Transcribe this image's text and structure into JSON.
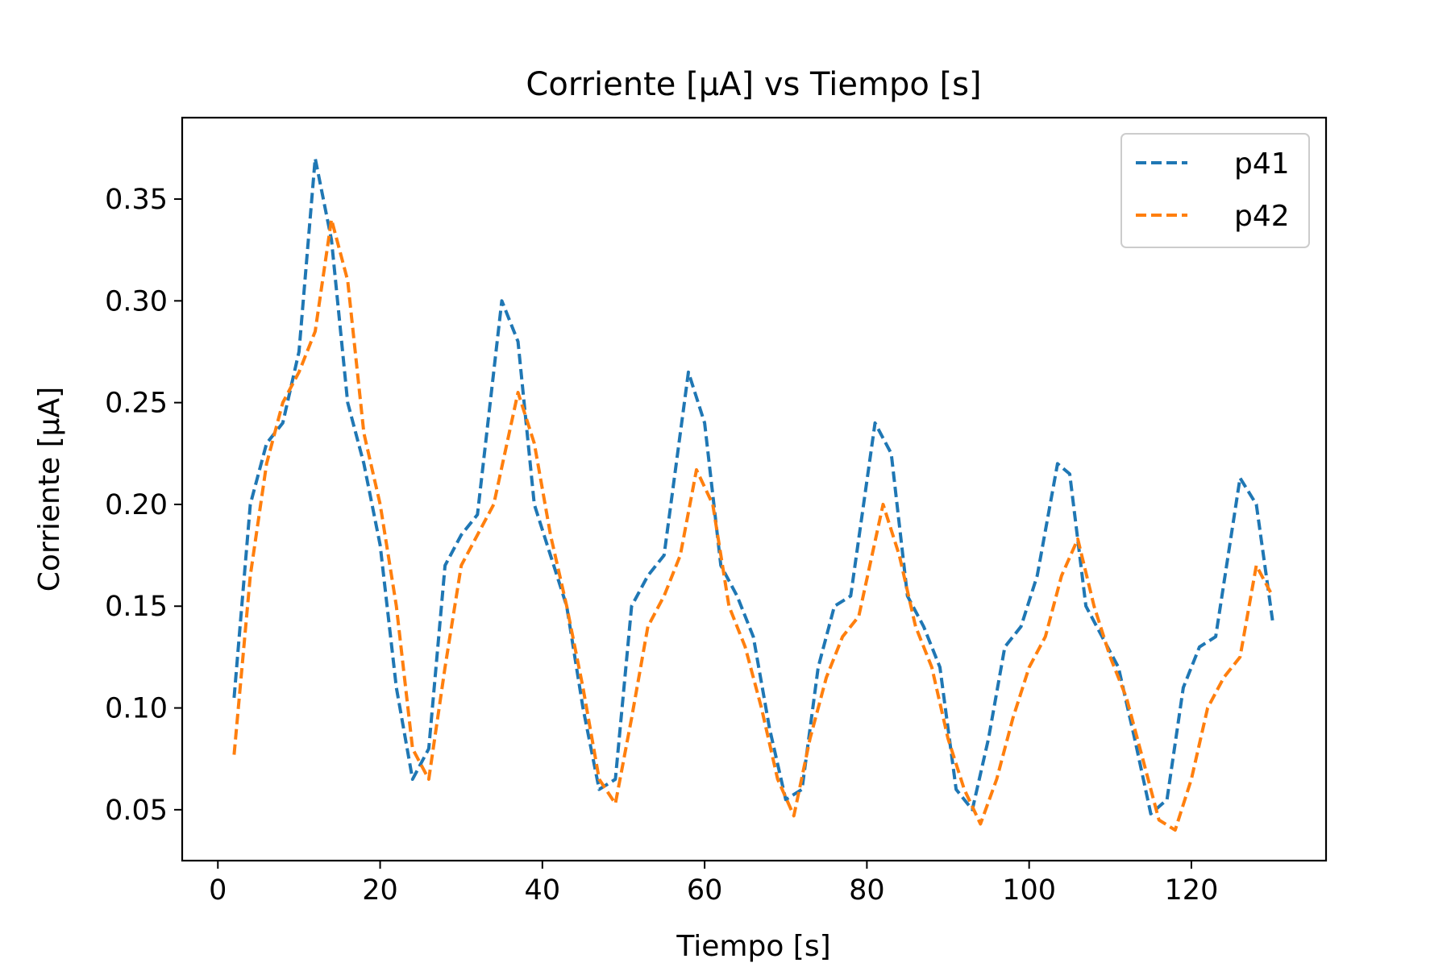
{
  "chart_data": {
    "type": "line",
    "title": "Corriente [μA] vs Tiempo [s]",
    "xlabel": "Tiempo [s]",
    "ylabel": "Corriente [μA]",
    "xlim": [
      -4.4,
      136.6
    ],
    "ylim": [
      0.025,
      0.39
    ],
    "xticks": [
      0,
      20,
      40,
      60,
      80,
      100,
      120
    ],
    "xtick_labels": [
      "0",
      "20",
      "40",
      "60",
      "80",
      "100",
      "120"
    ],
    "yticks": [
      0.05,
      0.1,
      0.15,
      0.2,
      0.25,
      0.3,
      0.35
    ],
    "ytick_labels": [
      "0.05",
      "0.10",
      "0.15",
      "0.20",
      "0.25",
      "0.30",
      "0.35"
    ],
    "grid": false,
    "legend_position": "top-right",
    "series": [
      {
        "name": "p41",
        "color": "#1f77b4",
        "linestyle": "dashed",
        "x": [
          2,
          4,
          6,
          8,
          10,
          12,
          14,
          16,
          18,
          20,
          22,
          24,
          26,
          28,
          30,
          32,
          35,
          37,
          39,
          41,
          43,
          45,
          47,
          49,
          51,
          53,
          55,
          58,
          60,
          62,
          64,
          66,
          68,
          70,
          72,
          74,
          76,
          78,
          81,
          83,
          85,
          87,
          89,
          91,
          93,
          95,
          97,
          99,
          101,
          103.5,
          105,
          107,
          109,
          111,
          113,
          115,
          117,
          119,
          121,
          123,
          126,
          128,
          130
        ],
        "y": [
          0.105,
          0.2,
          0.23,
          0.24,
          0.275,
          0.37,
          0.33,
          0.25,
          0.22,
          0.18,
          0.11,
          0.065,
          0.08,
          0.17,
          0.185,
          0.195,
          0.3,
          0.28,
          0.2,
          0.175,
          0.15,
          0.1,
          0.06,
          0.065,
          0.15,
          0.165,
          0.175,
          0.265,
          0.24,
          0.17,
          0.155,
          0.135,
          0.09,
          0.055,
          0.06,
          0.12,
          0.15,
          0.155,
          0.24,
          0.225,
          0.155,
          0.14,
          0.12,
          0.06,
          0.05,
          0.085,
          0.13,
          0.14,
          0.165,
          0.22,
          0.215,
          0.15,
          0.135,
          0.12,
          0.085,
          0.048,
          0.055,
          0.11,
          0.13,
          0.135,
          0.213,
          0.2,
          0.143
        ]
      },
      {
        "name": "p42",
        "color": "#ff7f0e",
        "linestyle": "dashed",
        "x": [
          2,
          4,
          6,
          8,
          10,
          12,
          14,
          16,
          18,
          20,
          22,
          24,
          26,
          28,
          30,
          32,
          34,
          37,
          39,
          41,
          43,
          45,
          47,
          49,
          51,
          53,
          55,
          57,
          59,
          61,
          63,
          65,
          67,
          69,
          71,
          73,
          75,
          77,
          79,
          82,
          84,
          86,
          88,
          90,
          92,
          94,
          96,
          98,
          100,
          102,
          104,
          106,
          108,
          110,
          112,
          114,
          116,
          118,
          120,
          122,
          124,
          126,
          128,
          130
        ],
        "y": [
          0.077,
          0.165,
          0.22,
          0.25,
          0.265,
          0.285,
          0.34,
          0.31,
          0.235,
          0.2,
          0.15,
          0.08,
          0.065,
          0.12,
          0.17,
          0.185,
          0.2,
          0.255,
          0.23,
          0.185,
          0.15,
          0.11,
          0.065,
          0.053,
          0.095,
          0.14,
          0.155,
          0.175,
          0.217,
          0.2,
          0.15,
          0.13,
          0.1,
          0.065,
          0.047,
          0.085,
          0.115,
          0.135,
          0.145,
          0.2,
          0.175,
          0.14,
          0.12,
          0.085,
          0.06,
          0.043,
          0.065,
          0.095,
          0.12,
          0.135,
          0.165,
          0.183,
          0.15,
          0.125,
          0.105,
          0.075,
          0.045,
          0.04,
          0.065,
          0.1,
          0.115,
          0.125,
          0.17,
          0.155
        ]
      }
    ]
  }
}
